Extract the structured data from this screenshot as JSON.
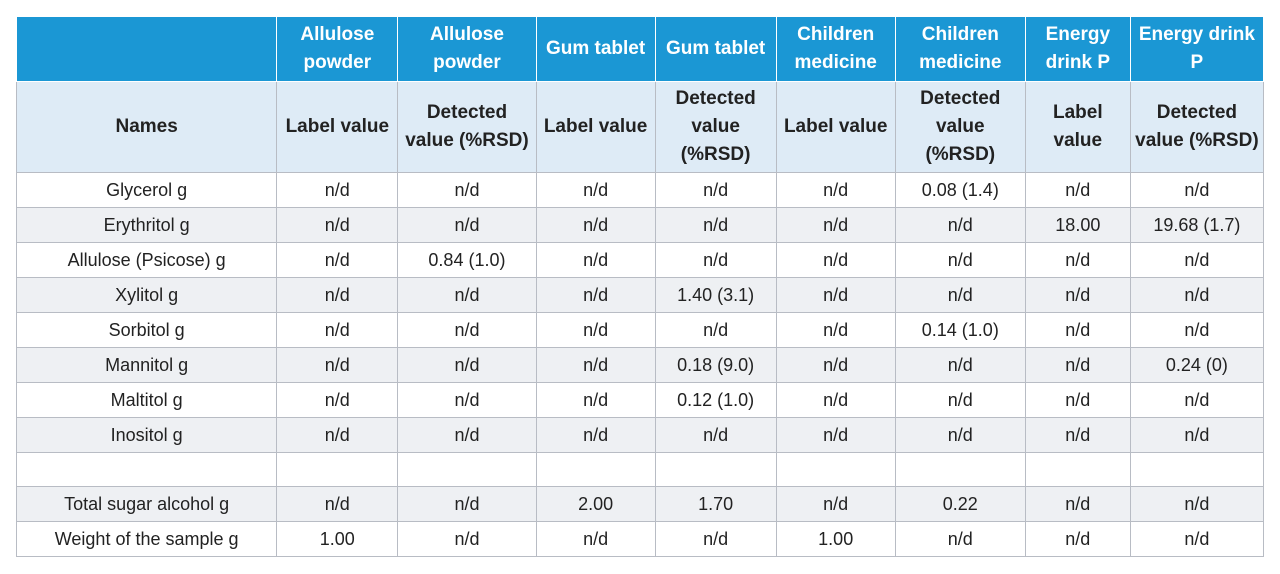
{
  "table": {
    "header_top": [
      "",
      "Allulose powder",
      "Allulose powder",
      "Gum tablet",
      "Gum tablet",
      "Children medicine",
      "Children medicine",
      "Energy drink P",
      "Energy drink P"
    ],
    "header_sub": [
      "Names",
      "Label value",
      "Detected value (%RSD)",
      "Label value",
      "Detected value (%RSD)",
      "Label value",
      "Detected value (%RSD)",
      "Label value",
      "Detected value (%RSD)"
    ],
    "rows": [
      [
        "Glycerol g",
        "n/d",
        "n/d",
        "n/d",
        "n/d",
        "n/d",
        "0.08 (1.4)",
        "n/d",
        "n/d"
      ],
      [
        "Erythritol g",
        "n/d",
        "n/d",
        "n/d",
        "n/d",
        "n/d",
        "n/d",
        "18.00",
        "19.68 (1.7)"
      ],
      [
        "Allulose (Psicose) g",
        "n/d",
        "0.84 (1.0)",
        "n/d",
        "n/d",
        "n/d",
        "n/d",
        "n/d",
        "n/d"
      ],
      [
        "Xylitol g",
        "n/d",
        "n/d",
        "n/d",
        "1.40 (3.1)",
        "n/d",
        "n/d",
        "n/d",
        "n/d"
      ],
      [
        "Sorbitol g",
        "n/d",
        "n/d",
        "n/d",
        "n/d",
        "n/d",
        "0.14 (1.0)",
        "n/d",
        "n/d"
      ],
      [
        "Mannitol g",
        "n/d",
        "n/d",
        "n/d",
        "0.18 (9.0)",
        "n/d",
        "n/d",
        "n/d",
        "0.24 (0)"
      ],
      [
        "Maltitol g",
        "n/d",
        "n/d",
        "n/d",
        "0.12 (1.0)",
        "n/d",
        "n/d",
        "n/d",
        "n/d"
      ],
      [
        "Inositol g",
        "n/d",
        "n/d",
        "n/d",
        "n/d",
        "n/d",
        "n/d",
        "n/d",
        "n/d"
      ],
      [
        "",
        "",
        "",
        "",
        "",
        "",
        "",
        "",
        ""
      ],
      [
        "Total sugar alcohol  g",
        "n/d",
        "n/d",
        "2.00",
        "1.70",
        "n/d",
        "0.22",
        "n/d",
        "n/d"
      ],
      [
        "Weight of the sample g",
        "1.00",
        "n/d",
        "n/d",
        "n/d",
        "1.00",
        "n/d",
        "n/d",
        "n/d"
      ]
    ]
  },
  "colors": {
    "header_top_bg": "#1b97d4",
    "header_sub_bg": "#deebf6",
    "alt_row_bg": "#eef0f3",
    "border": "#b8bcc4"
  }
}
